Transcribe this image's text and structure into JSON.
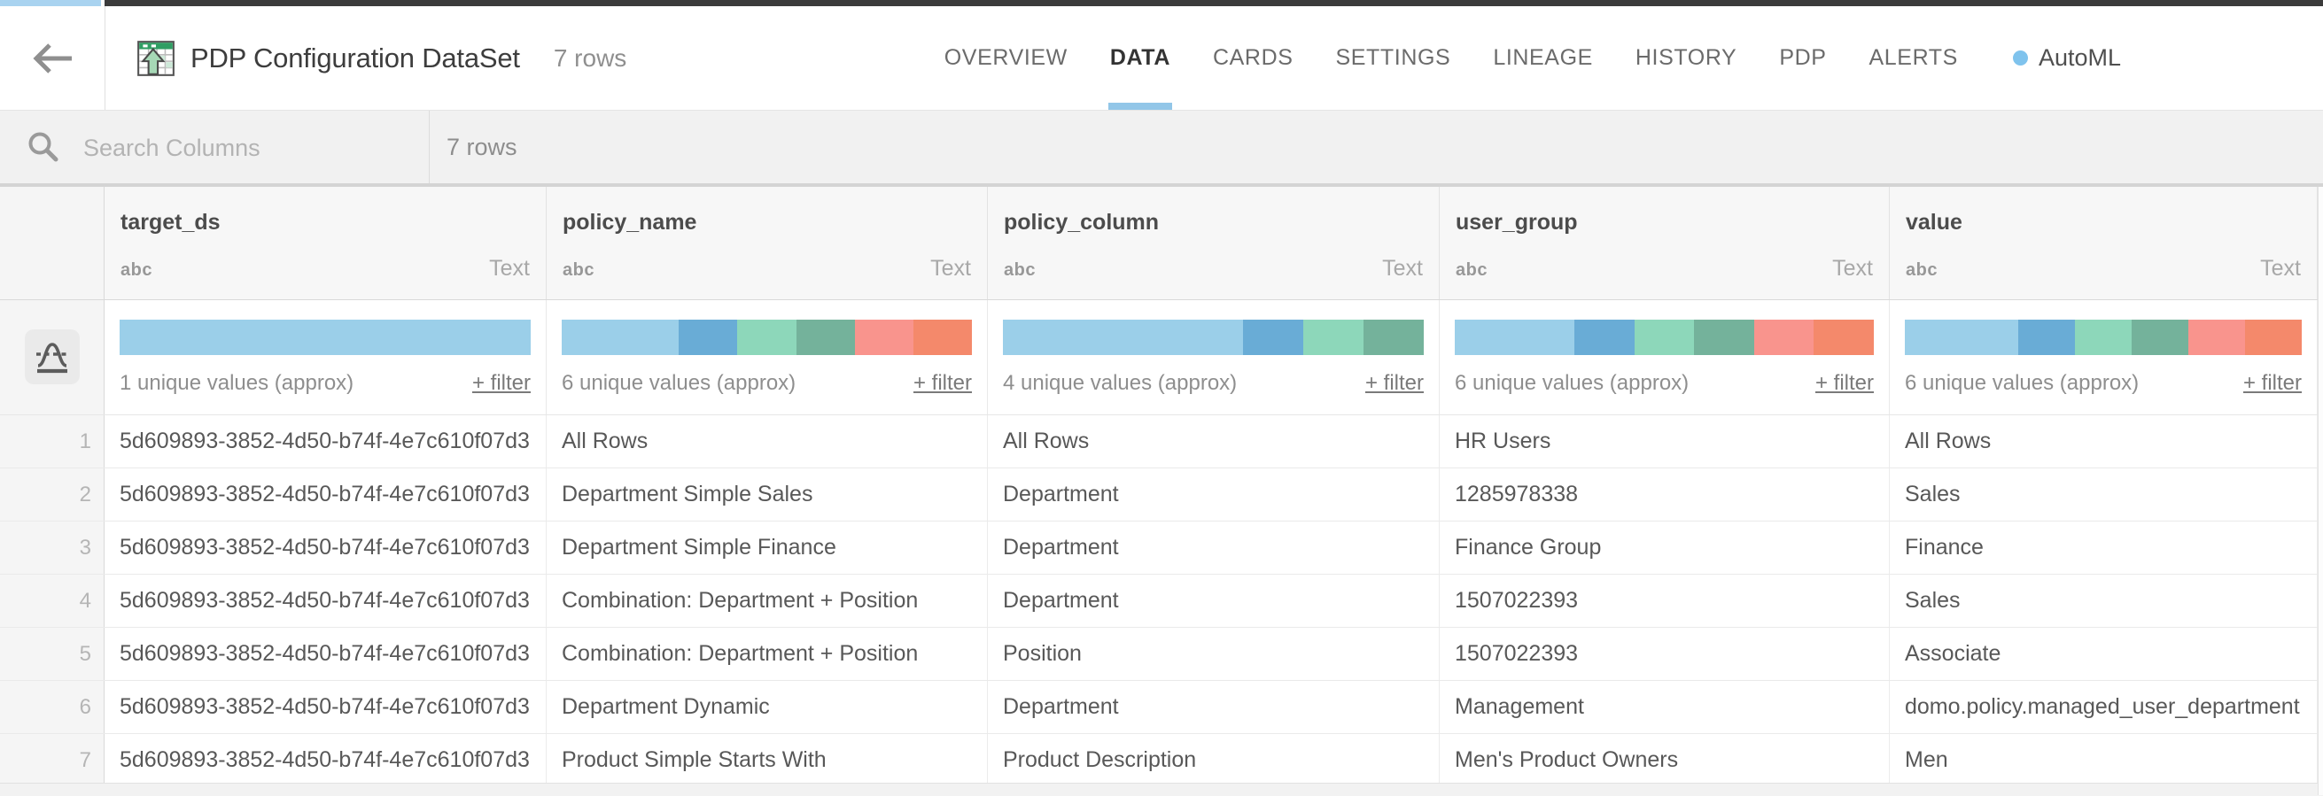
{
  "header": {
    "title": "PDP Configuration DataSet",
    "row_count": "7 rows",
    "tabs": [
      {
        "label": "OVERVIEW",
        "active": false
      },
      {
        "label": "DATA",
        "active": true
      },
      {
        "label": "CARDS",
        "active": false
      },
      {
        "label": "SETTINGS",
        "active": false
      },
      {
        "label": "LINEAGE",
        "active": false
      },
      {
        "label": "HISTORY",
        "active": false
      },
      {
        "label": "PDP",
        "active": false
      },
      {
        "label": "ALERTS",
        "active": false
      }
    ],
    "automl_label": "AutoML"
  },
  "toolbar": {
    "search_placeholder": "Search Columns",
    "row_count": "7 rows"
  },
  "colors": {
    "active_tab_underline": "#92c6e8",
    "automl_dot": "#7fc3ed",
    "histogram_palette": [
      "#9bcfe9",
      "#69acd6",
      "#8dd7ba",
      "#74b29b",
      "#f9948d",
      "#f4896b"
    ]
  },
  "table": {
    "columns": [
      {
        "name": "target_ds",
        "type_icon": "abc",
        "type_label": "Text",
        "unique_label": "1 unique values (approx)",
        "filter_label": "+ filter",
        "histogram": [
          {
            "ratio": 7,
            "color": "#9bcfe9"
          }
        ]
      },
      {
        "name": "policy_name",
        "type_icon": "abc",
        "type_label": "Text",
        "unique_label": "6 unique values (approx)",
        "filter_label": "+ filter",
        "histogram": [
          {
            "ratio": 2,
            "color": "#9bcfe9"
          },
          {
            "ratio": 1,
            "color": "#69acd6"
          },
          {
            "ratio": 1,
            "color": "#8dd7ba"
          },
          {
            "ratio": 1,
            "color": "#74b29b"
          },
          {
            "ratio": 1,
            "color": "#f9948d"
          },
          {
            "ratio": 1,
            "color": "#f4896b"
          }
        ]
      },
      {
        "name": "policy_column",
        "type_icon": "abc",
        "type_label": "Text",
        "unique_label": "4 unique values (approx)",
        "filter_label": "+ filter",
        "histogram": [
          {
            "ratio": 4,
            "color": "#9bcfe9"
          },
          {
            "ratio": 1,
            "color": "#69acd6"
          },
          {
            "ratio": 1,
            "color": "#8dd7ba"
          },
          {
            "ratio": 1,
            "color": "#74b29b"
          }
        ]
      },
      {
        "name": "user_group",
        "type_icon": "abc",
        "type_label": "Text",
        "unique_label": "6 unique values (approx)",
        "filter_label": "+ filter",
        "histogram": [
          {
            "ratio": 2,
            "color": "#9bcfe9"
          },
          {
            "ratio": 1,
            "color": "#69acd6"
          },
          {
            "ratio": 1,
            "color": "#8dd7ba"
          },
          {
            "ratio": 1,
            "color": "#74b29b"
          },
          {
            "ratio": 1,
            "color": "#f9948d"
          },
          {
            "ratio": 1,
            "color": "#f4896b"
          }
        ]
      },
      {
        "name": "value",
        "type_icon": "abc",
        "type_label": "Text",
        "unique_label": "6 unique values (approx)",
        "filter_label": "+ filter",
        "histogram": [
          {
            "ratio": 2,
            "color": "#9bcfe9"
          },
          {
            "ratio": 1,
            "color": "#69acd6"
          },
          {
            "ratio": 1,
            "color": "#8dd7ba"
          },
          {
            "ratio": 1,
            "color": "#74b29b"
          },
          {
            "ratio": 1,
            "color": "#f9948d"
          },
          {
            "ratio": 1,
            "color": "#f4896b"
          }
        ]
      }
    ],
    "rows": [
      {
        "num": "1",
        "cells": [
          "5d609893-3852-4d50-b74f-4e7c610f07d3",
          "All Rows",
          "All Rows",
          "HR Users",
          "All Rows"
        ]
      },
      {
        "num": "2",
        "cells": [
          "5d609893-3852-4d50-b74f-4e7c610f07d3",
          "Department Simple Sales",
          "Department",
          "1285978338",
          "Sales"
        ]
      },
      {
        "num": "3",
        "cells": [
          "5d609893-3852-4d50-b74f-4e7c610f07d3",
          "Department Simple Finance",
          "Department",
          "Finance Group",
          "Finance"
        ]
      },
      {
        "num": "4",
        "cells": [
          "5d609893-3852-4d50-b74f-4e7c610f07d3",
          "Combination: Department + Position",
          "Department",
          "1507022393",
          "Sales"
        ]
      },
      {
        "num": "5",
        "cells": [
          "5d609893-3852-4d50-b74f-4e7c610f07d3",
          "Combination: Department + Position",
          "Position",
          "1507022393",
          "Associate"
        ]
      },
      {
        "num": "6",
        "cells": [
          "5d609893-3852-4d50-b74f-4e7c610f07d3",
          "Department Dynamic",
          "Department",
          "Management",
          "domo.policy.managed_user_department"
        ]
      },
      {
        "num": "7",
        "cells": [
          "5d609893-3852-4d50-b74f-4e7c610f07d3",
          "Product Simple Starts With",
          "Product Description",
          "Men's Product Owners",
          "Men"
        ]
      }
    ]
  }
}
